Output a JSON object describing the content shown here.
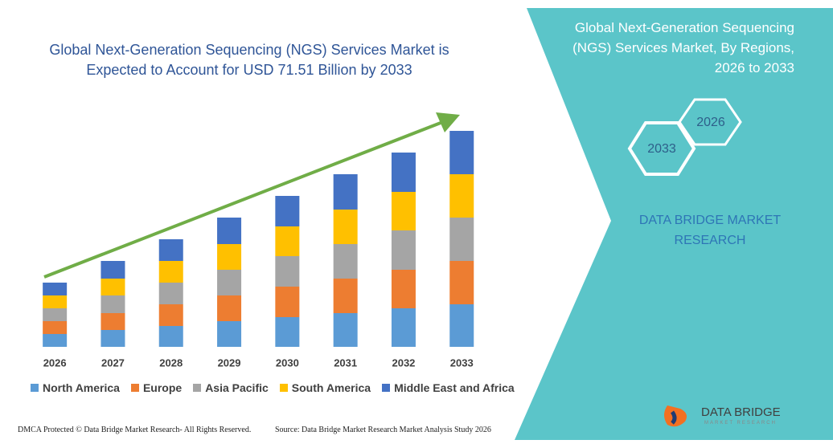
{
  "chart_data": {
    "type": "bar",
    "stacked": true,
    "title": "Global Next-Generation Sequencing (NGS) Services Market is Expected to Account for USD 71.51 Billion by 2033",
    "categories": [
      "2026",
      "2027",
      "2028",
      "2029",
      "2030",
      "2031",
      "2032",
      "2033"
    ],
    "series": [
      {
        "name": "North America",
        "color": "#5b9bd5",
        "values": [
          16,
          21,
          26,
          32,
          37,
          42,
          48,
          53
        ]
      },
      {
        "name": "Europe",
        "color": "#ed7d31",
        "values": [
          16,
          21,
          27,
          32,
          38,
          43,
          48,
          54
        ]
      },
      {
        "name": "Asia Pacific",
        "color": "#a5a5a5",
        "values": [
          16,
          22,
          27,
          32,
          38,
          43,
          49,
          54
        ]
      },
      {
        "name": "South America",
        "color": "#ffc000",
        "values": [
          16,
          21,
          27,
          32,
          37,
          43,
          48,
          54
        ]
      },
      {
        "name": "Middle East and Africa",
        "color": "#4472c4",
        "values": [
          16,
          22,
          27,
          33,
          38,
          44,
          49,
          54
        ]
      }
    ]
  },
  "panel": {
    "title": "Global Next-Generation Sequencing (NGS) Services Market, By Regions, 2026 to 2033",
    "hex_back": "2026",
    "hex_front": "2033",
    "brand": "DATA BRIDGE MARKET RESEARCH"
  },
  "footer": {
    "left": "DMCA Protected © Data Bridge Market Research- All Rights Reserved.",
    "right": "Source: Data Bridge Market Research Market Analysis Study 2026"
  },
  "logo": {
    "name": "DATA BRIDGE",
    "tagline": "MARKET RESEARCH"
  }
}
